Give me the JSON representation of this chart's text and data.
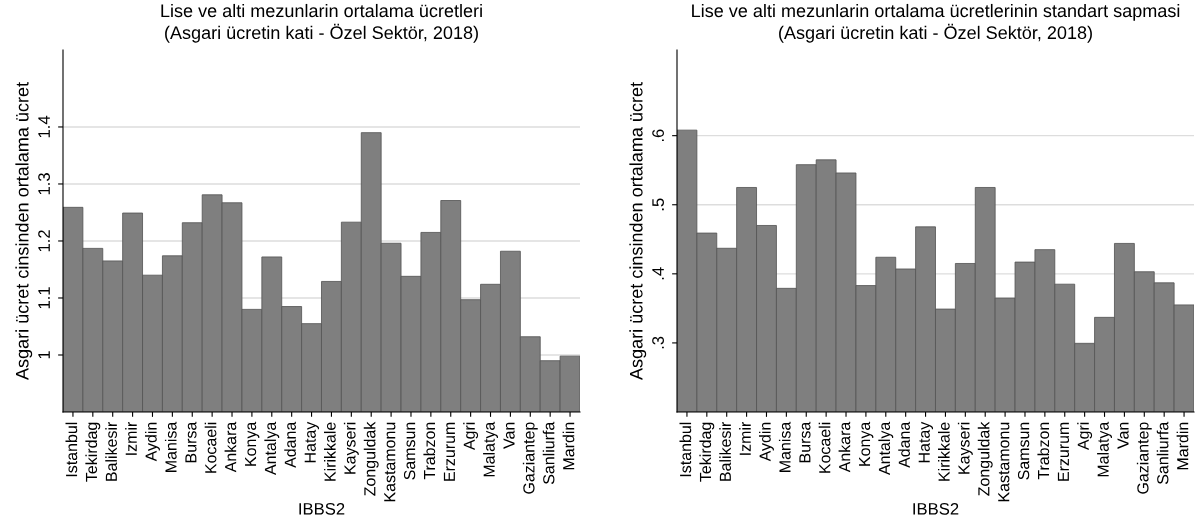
{
  "chart_data": [
    {
      "type": "bar",
      "title": "Lise ve alti mezunlarin ortalama ücretleri",
      "subtitle": "(Asgari ücretin kati - Özel Sektör, 2018)",
      "xlabel": "IBBS2",
      "ylabel": "Asgari ücret cinsinden ortalama ücret",
      "categories": [
        "Istanbul",
        "Tekirdag",
        "Balikesir",
        "Izmir",
        "Aydin",
        "Manisa",
        "Bursa",
        "Kocaeli",
        "Ankara",
        "Konya",
        "Antalya",
        "Adana",
        "Hatay",
        "Kirikkale",
        "Kayseri",
        "Zonguldak",
        "Kastamonu",
        "Samsun",
        "Trabzon",
        "Erzurum",
        "Agri",
        "Malatya",
        "Van",
        "Gaziantep",
        "Sanliurfa",
        "Mardin"
      ],
      "values": [
        1.259,
        1.187,
        1.165,
        1.249,
        1.14,
        1.174,
        1.232,
        1.281,
        1.267,
        1.08,
        1.172,
        1.085,
        1.055,
        1.129,
        1.233,
        1.39,
        1.196,
        1.138,
        1.215,
        1.271,
        1.097,
        1.124,
        1.182,
        1.032,
        0.99,
        0.998
      ],
      "color": "#7f7f7f",
      "ylim": [
        0.9,
        1.535
      ],
      "yticks": [
        1,
        1.1,
        1.2,
        1.3,
        1.4
      ],
      "grid": "y"
    },
    {
      "type": "bar",
      "title": "Lise ve alti mezunlarin ortalama ücretlerinin standart sapmasi",
      "subtitle": "(Asgari ücretin kati - Özel Sektör, 2018)",
      "xlabel": "IBBS2",
      "ylabel": "Asgari ücret cinsinden ortalama ücret",
      "categories": [
        "Istanbul",
        "Tekirdag",
        "Balikesir",
        "Izmir",
        "Aydin",
        "Manisa",
        "Bursa",
        "Kocaeli",
        "Ankara",
        "Konya",
        "Antalya",
        "Adana",
        "Hatay",
        "Kirikkale",
        "Kayseri",
        "Zonguldak",
        "Kastamonu",
        "Samsun",
        "Trabzon",
        "Erzurum",
        "Agri",
        "Malatya",
        "Van",
        "Gaziantep",
        "Sanliurfa",
        "Mardin"
      ],
      "values": [
        0.608,
        0.459,
        0.437,
        0.525,
        0.47,
        0.379,
        0.558,
        0.565,
        0.546,
        0.383,
        0.424,
        0.407,
        0.468,
        0.349,
        0.415,
        0.525,
        0.365,
        0.417,
        0.435,
        0.385,
        0.299,
        0.337,
        0.444,
        0.403,
        0.387,
        0.355
      ],
      "color": "#7f7f7f",
      "ylim": [
        0.2,
        0.724
      ],
      "yticks": [
        {
          "value": 0.3,
          "label": ".3"
        },
        {
          "value": 0.4,
          "label": ".4"
        },
        {
          "value": 0.5,
          "label": ".5"
        },
        {
          "value": 0.6,
          "label": ".6"
        }
      ],
      "grid": "y"
    }
  ]
}
